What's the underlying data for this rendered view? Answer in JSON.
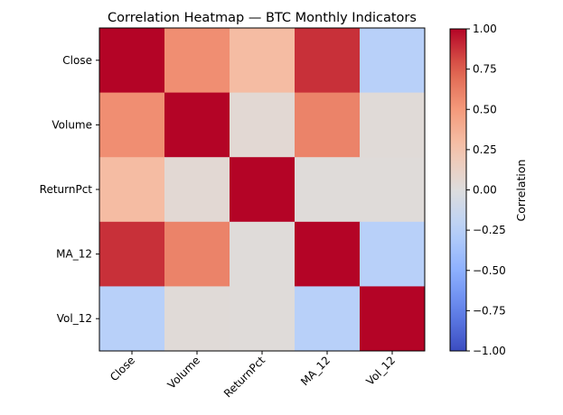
{
  "chart_data": {
    "type": "heatmap",
    "title": "Correlation Heatmap — BTC Monthly Indicators",
    "x_categories": [
      "Close",
      "Volume",
      "ReturnPct",
      "MA_12",
      "Vol_12"
    ],
    "y_categories": [
      "Close",
      "Volume",
      "ReturnPct",
      "MA_12",
      "Vol_12"
    ],
    "values": [
      [
        1.0,
        0.55,
        0.3,
        0.88,
        -0.25
      ],
      [
        0.55,
        1.0,
        0.05,
        0.6,
        0.03
      ],
      [
        0.3,
        0.05,
        1.0,
        0.02,
        0.02
      ],
      [
        0.88,
        0.6,
        0.02,
        1.0,
        -0.25
      ],
      [
        -0.25,
        0.03,
        0.02,
        -0.25,
        1.0
      ]
    ],
    "colormap": "coolwarm",
    "vmin": -1.0,
    "vmax": 1.0,
    "colorbar": {
      "label": "Correlation",
      "ticks": [
        1.0,
        0.75,
        0.5,
        0.25,
        0.0,
        -0.25,
        -0.5,
        -0.75,
        -1.0
      ],
      "tick_labels": [
        "1.00",
        "0.75",
        "0.50",
        "0.25",
        "0.00",
        "−0.25",
        "−0.50",
        "−0.75",
        "−1.00"
      ]
    }
  }
}
